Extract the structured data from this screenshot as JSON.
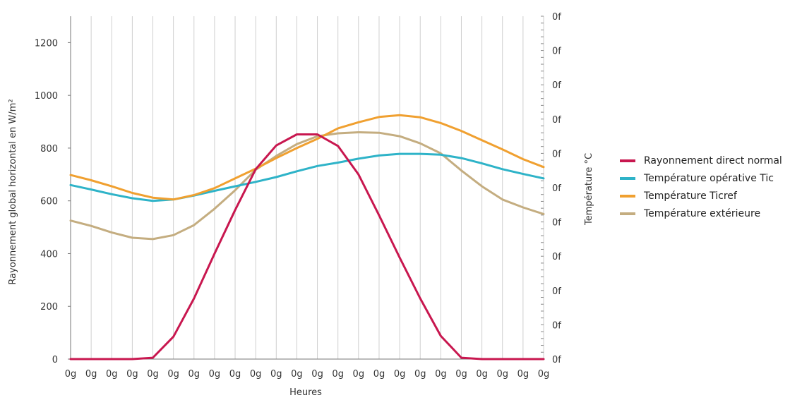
{
  "chart_data": {
    "type": "line",
    "xlabel": "Heures",
    "ylabel_left": "Rayonnement global horizontal en W/m²",
    "ylabel_right": "Température °C",
    "x_tick_labels": [
      "0g",
      "0g",
      "0g",
      "0g",
      "0g",
      "0g",
      "0g",
      "0g",
      "0g",
      "0g",
      "0g",
      "0g",
      "0g",
      "0g",
      "0g",
      "0g",
      "0g",
      "0g",
      "0g",
      "0g",
      "0g",
      "0g",
      "0g",
      "0g"
    ],
    "y_left_ticks": [
      0,
      200,
      400,
      600,
      800,
      1000,
      1200
    ],
    "y_right_tick_labels": [
      "0f",
      "0f",
      "0f",
      "0f",
      "0f",
      "0f",
      "0f",
      "0f",
      "0f",
      "0f",
      "0f"
    ],
    "ylim_left": [
      0,
      1300
    ],
    "grid": "vertical",
    "legend_position": "right",
    "series": [
      {
        "name": "Rayonnement direct normal",
        "color": "#c8174f",
        "values": [
          0,
          0,
          0,
          0,
          5,
          85,
          230,
          400,
          565,
          720,
          810,
          852,
          852,
          808,
          700,
          545,
          385,
          230,
          88,
          5,
          0,
          0,
          0,
          0
        ]
      },
      {
        "name": "Température opérative Tic",
        "color": "#2eb3c8",
        "values": [
          660,
          643,
          625,
          610,
          600,
          605,
          620,
          638,
          655,
          672,
          690,
          712,
          732,
          745,
          760,
          772,
          778,
          778,
          775,
          762,
          742,
          720,
          702,
          685
        ]
      },
      {
        "name": "Température Ticref",
        "color": "#f0a030",
        "values": [
          698,
          678,
          655,
          630,
          612,
          605,
          622,
          648,
          685,
          722,
          762,
          800,
          835,
          875,
          898,
          918,
          925,
          917,
          895,
          865,
          830,
          795,
          758,
          728
        ]
      },
      {
        "name": "Température extérieure",
        "color": "#c4ad80",
        "values": [
          525,
          505,
          480,
          460,
          455,
          470,
          508,
          570,
          640,
          718,
          770,
          815,
          845,
          856,
          860,
          858,
          845,
          818,
          780,
          715,
          655,
          605,
          575,
          550
        ]
      }
    ]
  }
}
